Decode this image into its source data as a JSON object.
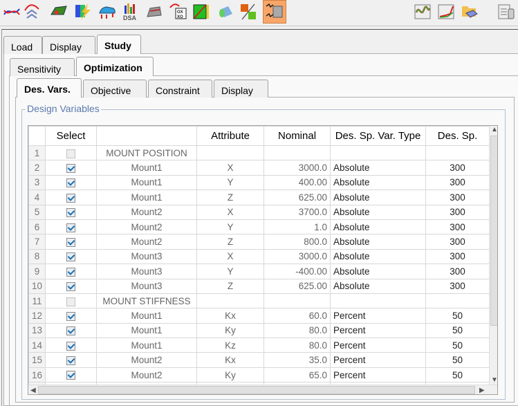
{
  "toolbar": {
    "left_icons": [
      "curve-plot-icon",
      "wave-stack-icon",
      "car-body-contour-icon",
      "lightning-contour-icon",
      "car-loads-icon",
      "dsa-bar-chart-icon",
      "seat-structure-icon",
      "oxxo-matrix-icon",
      "diagonal-response-icon",
      "cylinder-contour-icon",
      "cube-split-icon",
      "vibration-block-icon"
    ],
    "dsa_label": "DSA",
    "oxxo_label": "OX XO",
    "right_icons": [
      "line-plot-icon",
      "frequency-plot-icon",
      "folder-mesh-icon",
      "database-icon"
    ],
    "selected_color": "#f8a66a"
  },
  "tabs": {
    "main": [
      {
        "label": "Load"
      },
      {
        "label": "Display"
      },
      {
        "label": "Study"
      }
    ],
    "sub": [
      {
        "label": "Sensitivity"
      },
      {
        "label": "Optimization"
      }
    ],
    "inner": [
      {
        "label": "Des. Vars."
      },
      {
        "label": "Objective"
      },
      {
        "label": "Constraint"
      },
      {
        "label": "Display"
      }
    ]
  },
  "group": {
    "title": "Design Variables"
  },
  "table": {
    "headers": [
      "",
      "Select",
      "",
      "Attribute",
      "Nominal",
      "Des. Sp. Var. Type",
      "Des. Sp."
    ],
    "rows": [
      {
        "n": "1",
        "checked": false,
        "name": "MOUNT POSITION",
        "attr": "",
        "nominal": "",
        "type": "",
        "sp": "",
        "group": true
      },
      {
        "n": "2",
        "checked": true,
        "name": "Mount1",
        "attr": "X",
        "nominal": "3000.0",
        "type": "Absolute",
        "sp": "300"
      },
      {
        "n": "3",
        "checked": true,
        "name": "Mount1",
        "attr": "Y",
        "nominal": "400.00",
        "type": "Absolute",
        "sp": "300"
      },
      {
        "n": "4",
        "checked": true,
        "name": "Mount1",
        "attr": "Z",
        "nominal": "625.00",
        "type": "Absolute",
        "sp": "300"
      },
      {
        "n": "5",
        "checked": true,
        "name": "Mount2",
        "attr": "X",
        "nominal": "3700.0",
        "type": "Absolute",
        "sp": "300"
      },
      {
        "n": "6",
        "checked": true,
        "name": "Mount2",
        "attr": "Y",
        "nominal": "1.0",
        "type": "Absolute",
        "sp": "300"
      },
      {
        "n": "7",
        "checked": true,
        "name": "Mount2",
        "attr": "Z",
        "nominal": "800.0",
        "type": "Absolute",
        "sp": "300"
      },
      {
        "n": "8",
        "checked": true,
        "name": "Mount3",
        "attr": "X",
        "nominal": "3000.0",
        "type": "Absolute",
        "sp": "300"
      },
      {
        "n": "9",
        "checked": true,
        "name": "Mount3",
        "attr": "Y",
        "nominal": "-400.00",
        "type": "Absolute",
        "sp": "300"
      },
      {
        "n": "10",
        "checked": true,
        "name": "Mount3",
        "attr": "Z",
        "nominal": "625.00",
        "type": "Absolute",
        "sp": "300"
      },
      {
        "n": "11",
        "checked": false,
        "name": "MOUNT STIFFNESS",
        "attr": "",
        "nominal": "",
        "type": "",
        "sp": "",
        "group": true
      },
      {
        "n": "12",
        "checked": true,
        "name": "Mount1",
        "attr": "Kx",
        "nominal": "60.0",
        "type": "Percent",
        "sp": "50"
      },
      {
        "n": "13",
        "checked": true,
        "name": "Mount1",
        "attr": "Ky",
        "nominal": "80.0",
        "type": "Percent",
        "sp": "50"
      },
      {
        "n": "14",
        "checked": true,
        "name": "Mount1",
        "attr": "Kz",
        "nominal": "80.0",
        "type": "Percent",
        "sp": "50"
      },
      {
        "n": "15",
        "checked": true,
        "name": "Mount2",
        "attr": "Kx",
        "nominal": "35.0",
        "type": "Percent",
        "sp": "50"
      },
      {
        "n": "16",
        "checked": true,
        "name": "Mount2",
        "attr": "Ky",
        "nominal": "65.0",
        "type": "Percent",
        "sp": "50"
      },
      {
        "n": "",
        "checked": true,
        "name": "",
        "attr": "",
        "nominal": "",
        "type": "",
        "sp": ""
      }
    ]
  }
}
